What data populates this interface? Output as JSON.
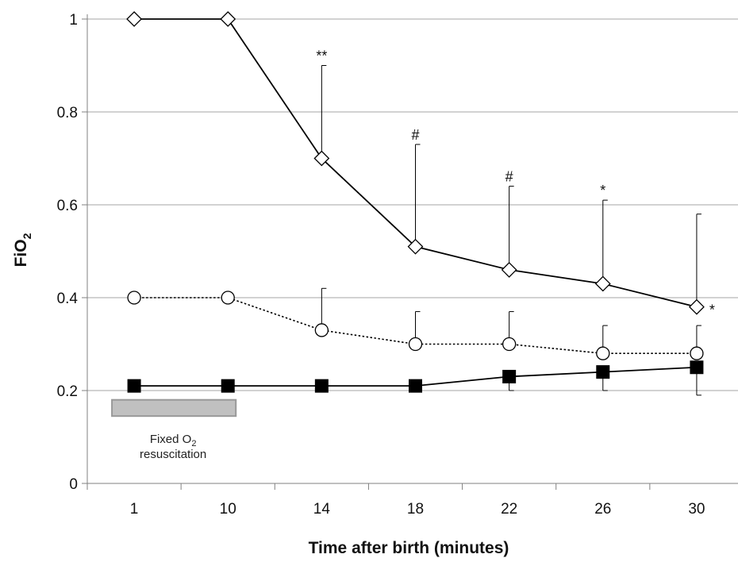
{
  "chart_data": {
    "type": "line",
    "title": "",
    "xlabel": "Time after birth (minutes)",
    "ylabel": {
      "main": "FiO",
      "sub": "2"
    },
    "categories": [
      "1",
      "10",
      "14",
      "18",
      "22",
      "26",
      "30"
    ],
    "ylim": [
      0,
      1
    ],
    "yticks": [
      "0",
      "0.2",
      "0.4",
      "0.6",
      "0.8",
      "1"
    ],
    "grid": true,
    "series": [
      {
        "marker": "diamond",
        "line_style": "solid",
        "color": "#000000",
        "values": [
          1.0,
          1.0,
          0.7,
          0.51,
          0.46,
          0.43,
          0.38
        ],
        "error_upper": [
          null,
          null,
          0.9,
          0.73,
          0.64,
          0.61,
          0.58
        ]
      },
      {
        "marker": "circle",
        "line_style": "dotted",
        "color": "#000000",
        "values": [
          0.4,
          0.4,
          0.33,
          0.3,
          0.3,
          0.28,
          0.28
        ],
        "error_upper": [
          null,
          null,
          0.42,
          0.37,
          0.37,
          0.34,
          0.34
        ]
      },
      {
        "marker": "square",
        "line_style": "solid",
        "color": "#000000",
        "values": [
          0.21,
          0.21,
          0.21,
          0.21,
          0.23,
          0.24,
          0.25
        ],
        "error_lower": [
          null,
          null,
          null,
          null,
          0.2,
          0.2,
          0.19
        ]
      }
    ],
    "annotations": [
      {
        "text": "**",
        "category": "14",
        "y": 0.9
      },
      {
        "text": "#",
        "category": "18",
        "y": 0.73
      },
      {
        "text": "#",
        "category": "22",
        "y": 0.64
      },
      {
        "text": "*",
        "category": "26",
        "y": 0.61
      },
      {
        "text": "*",
        "category": "30",
        "y": 0.38,
        "side": "right"
      }
    ],
    "fixed_o2_note": {
      "line1": "Fixed O",
      "line1_sub": "2",
      "line2": "resuscitation",
      "bar_color": "#c0c0c0",
      "bar_border": "#999999"
    }
  }
}
